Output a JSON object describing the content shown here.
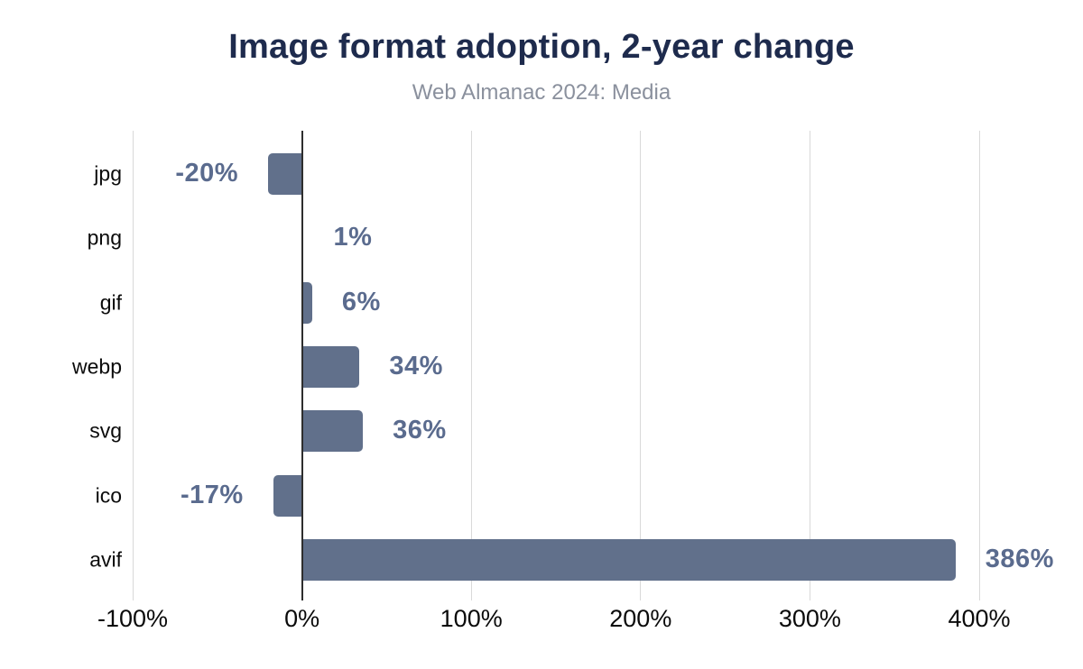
{
  "chart_data": {
    "type": "bar",
    "orientation": "horizontal",
    "title": "Image format adoption, 2-year change",
    "subtitle": "Web Almanac 2024: Media",
    "categories": [
      "jpg",
      "png",
      "gif",
      "webp",
      "svg",
      "ico",
      "avif"
    ],
    "values": [
      -20,
      1,
      6,
      34,
      36,
      -17,
      386
    ],
    "value_labels": [
      "-20%",
      "1%",
      "6%",
      "34%",
      "36%",
      "-17%",
      "386%"
    ],
    "x_ticks": [
      {
        "value": -100,
        "label": "-100%"
      },
      {
        "value": 0,
        "label": "0%"
      },
      {
        "value": 100,
        "label": "100%"
      },
      {
        "value": 200,
        "label": "200%"
      },
      {
        "value": 300,
        "label": "300%"
      },
      {
        "value": 400,
        "label": "400%"
      }
    ],
    "xlim": [
      -100,
      400
    ],
    "grid": "vertical-gridlines-on",
    "legend": "none",
    "colors": {
      "background": "#FFFFFF",
      "bar": "#61708B",
      "value_label": "#5A6B8E",
      "title": "#1E2B4D",
      "subtitle": "#8A909D",
      "axis_text": "#0B0B0B",
      "gridline": "#D9D9D9",
      "zero_line": "#2E2E2E"
    }
  }
}
